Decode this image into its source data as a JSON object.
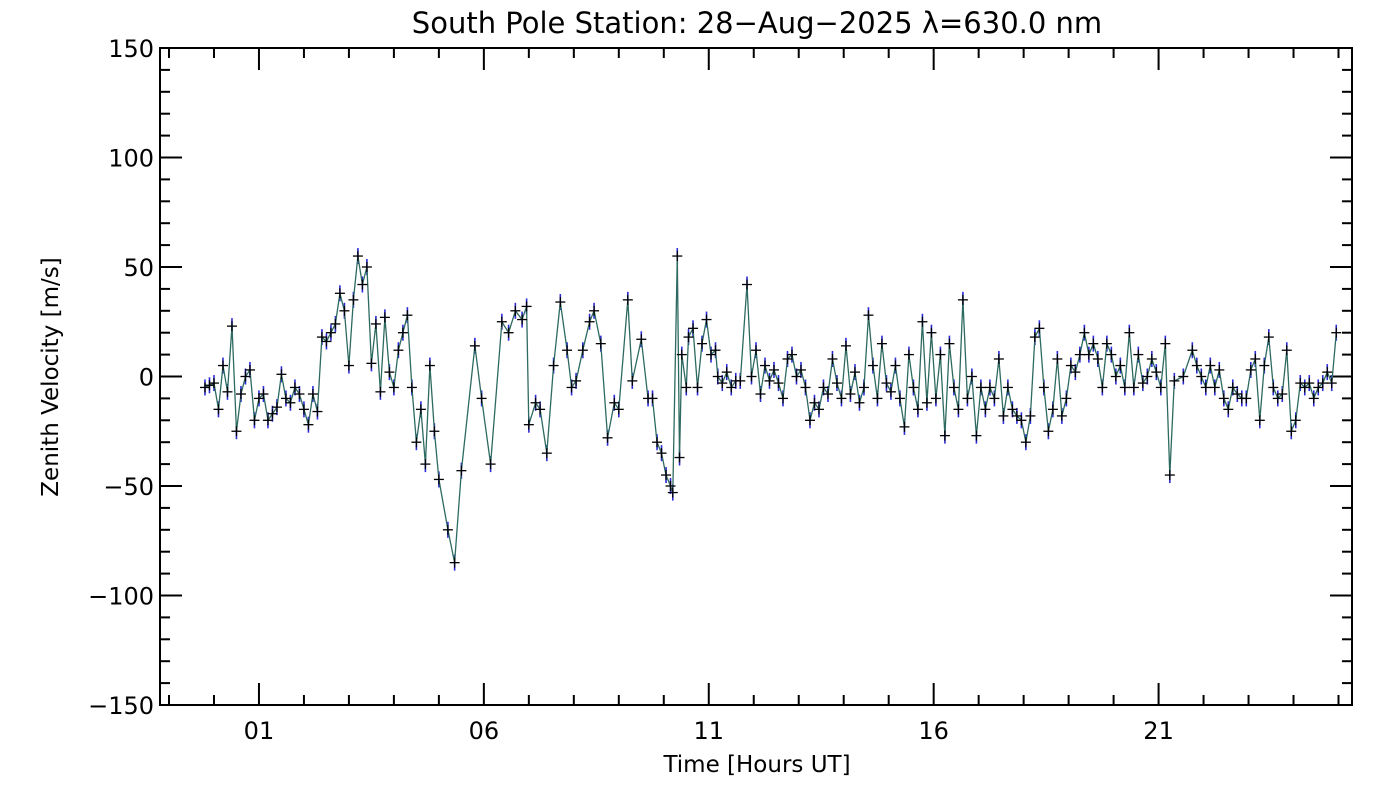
{
  "chart_data": {
    "type": "line",
    "title": "South Pole Station: 28−Aug−2025 λ=630.0 nm",
    "xlabel": "Time [Hours UT]",
    "ylabel": "Zenith Velocity [m/s]",
    "xlim": [
      -1.2,
      25.3
    ],
    "ylim": [
      -150,
      150
    ],
    "x_ticks": [
      {
        "value": 1,
        "label": "01"
      },
      {
        "value": 6,
        "label": "06"
      },
      {
        "value": 11,
        "label": "11"
      },
      {
        "value": 16,
        "label": "16"
      },
      {
        "value": 21,
        "label": "21"
      }
    ],
    "y_ticks": [
      {
        "value": 150,
        "label": "150"
      },
      {
        "value": 100,
        "label": "100"
      },
      {
        "value": 50,
        "label": "50"
      },
      {
        "value": 0,
        "label": "0"
      },
      {
        "value": -50,
        "label": "−50"
      },
      {
        "value": -100,
        "label": "−100"
      },
      {
        "value": -150,
        "label": "−150"
      }
    ],
    "colors": {
      "line": "#2d6a5f",
      "error_bars": "#2a2ad8",
      "markers": "#000000",
      "axes": "#000000"
    },
    "grid": false,
    "series": [
      {
        "marker": "plus",
        "points": [
          [
            -0.2,
            -5
          ],
          [
            -0.1,
            -4
          ],
          [
            0.0,
            -3
          ],
          [
            0.1,
            -15
          ],
          [
            0.2,
            5
          ],
          [
            0.3,
            -7
          ],
          [
            0.4,
            23
          ],
          [
            0.5,
            -25
          ],
          [
            0.6,
            -8
          ],
          [
            0.7,
            0
          ],
          [
            0.8,
            3
          ],
          [
            0.9,
            -20
          ],
          [
            1.0,
            -10
          ],
          [
            1.1,
            -8
          ],
          [
            1.2,
            -20
          ],
          [
            1.3,
            -17
          ],
          [
            1.4,
            -14
          ],
          [
            1.5,
            1
          ],
          [
            1.6,
            -10
          ],
          [
            1.7,
            -12
          ],
          [
            1.8,
            -5
          ],
          [
            1.9,
            -8
          ],
          [
            2.0,
            -15
          ],
          [
            2.1,
            -22
          ],
          [
            2.2,
            -8
          ],
          [
            2.3,
            -16
          ],
          [
            2.4,
            18
          ],
          [
            2.5,
            16
          ],
          [
            2.6,
            20
          ],
          [
            2.7,
            24
          ],
          [
            2.8,
            38
          ],
          [
            2.9,
            30
          ],
          [
            3.0,
            5
          ],
          [
            3.1,
            35
          ],
          [
            3.2,
            55
          ],
          [
            3.3,
            42
          ],
          [
            3.4,
            50
          ],
          [
            3.5,
            6
          ],
          [
            3.6,
            24
          ],
          [
            3.7,
            -7
          ],
          [
            3.8,
            27
          ],
          [
            3.9,
            2
          ],
          [
            4.0,
            -5
          ],
          [
            4.1,
            12
          ],
          [
            4.2,
            20
          ],
          [
            4.3,
            28
          ],
          [
            4.4,
            -5
          ],
          [
            4.5,
            -30
          ],
          [
            4.6,
            -15
          ],
          [
            4.7,
            -40
          ],
          [
            4.8,
            5
          ],
          [
            4.9,
            -25
          ],
          [
            5.0,
            -47
          ],
          [
            5.2,
            -70
          ],
          [
            5.35,
            -85
          ],
          [
            5.5,
            -43
          ],
          [
            5.8,
            14
          ],
          [
            5.95,
            -10
          ],
          [
            6.15,
            -40
          ],
          [
            6.4,
            25
          ],
          [
            6.55,
            20
          ],
          [
            6.7,
            30
          ],
          [
            6.85,
            26
          ],
          [
            6.95,
            32
          ],
          [
            7.0,
            -22
          ],
          [
            7.15,
            -12
          ],
          [
            7.25,
            -15
          ],
          [
            7.4,
            -35
          ],
          [
            7.55,
            5
          ],
          [
            7.7,
            34
          ],
          [
            7.85,
            12
          ],
          [
            7.95,
            -5
          ],
          [
            8.05,
            -2
          ],
          [
            8.2,
            12
          ],
          [
            8.35,
            25
          ],
          [
            8.45,
            30
          ],
          [
            8.6,
            15
          ],
          [
            8.75,
            -28
          ],
          [
            8.9,
            -12
          ],
          [
            9.0,
            -15
          ],
          [
            9.2,
            35
          ],
          [
            9.3,
            -2
          ],
          [
            9.5,
            17
          ],
          [
            9.65,
            -10
          ],
          [
            9.75,
            -10
          ],
          [
            9.85,
            -30
          ],
          [
            9.95,
            -35
          ],
          [
            10.05,
            -45
          ],
          [
            10.15,
            -50
          ],
          [
            10.2,
            -53
          ],
          [
            10.3,
            55
          ],
          [
            10.35,
            -37
          ],
          [
            10.4,
            10
          ],
          [
            10.5,
            -5
          ],
          [
            10.55,
            18
          ],
          [
            10.65,
            22
          ],
          [
            10.75,
            -5
          ],
          [
            10.85,
            15
          ],
          [
            10.95,
            26
          ],
          [
            11.05,
            10
          ],
          [
            11.15,
            12
          ],
          [
            11.2,
            0
          ],
          [
            11.3,
            -3
          ],
          [
            11.4,
            2
          ],
          [
            11.5,
            -5
          ],
          [
            11.6,
            -2
          ],
          [
            11.7,
            -2
          ],
          [
            11.85,
            42
          ],
          [
            11.95,
            0
          ],
          [
            12.05,
            12
          ],
          [
            12.15,
            -8
          ],
          [
            12.25,
            5
          ],
          [
            12.35,
            -2
          ],
          [
            12.45,
            3
          ],
          [
            12.55,
            -3
          ],
          [
            12.65,
            -10
          ],
          [
            12.75,
            8
          ],
          [
            12.85,
            10
          ],
          [
            12.95,
            0
          ],
          [
            13.05,
            3
          ],
          [
            13.15,
            -5
          ],
          [
            13.25,
            -20
          ],
          [
            13.35,
            -12
          ],
          [
            13.45,
            -15
          ],
          [
            13.55,
            -5
          ],
          [
            13.65,
            -8
          ],
          [
            13.75,
            8
          ],
          [
            13.85,
            -3
          ],
          [
            13.95,
            -10
          ],
          [
            14.05,
            14
          ],
          [
            14.15,
            -8
          ],
          [
            14.25,
            2
          ],
          [
            14.35,
            -12
          ],
          [
            14.45,
            -5
          ],
          [
            14.55,
            28
          ],
          [
            14.65,
            5
          ],
          [
            14.75,
            -10
          ],
          [
            14.85,
            15
          ],
          [
            14.95,
            -3
          ],
          [
            15.05,
            -7
          ],
          [
            15.15,
            5
          ],
          [
            15.25,
            -10
          ],
          [
            15.35,
            -23
          ],
          [
            15.45,
            10
          ],
          [
            15.55,
            -5
          ],
          [
            15.65,
            -15
          ],
          [
            15.75,
            25
          ],
          [
            15.85,
            -12
          ],
          [
            15.95,
            20
          ],
          [
            16.05,
            -10
          ],
          [
            16.15,
            10
          ],
          [
            16.25,
            -27
          ],
          [
            16.35,
            15
          ],
          [
            16.45,
            -5
          ],
          [
            16.55,
            -15
          ],
          [
            16.65,
            35
          ],
          [
            16.75,
            -10
          ],
          [
            16.85,
            0
          ],
          [
            16.95,
            -27
          ],
          [
            17.05,
            -5
          ],
          [
            17.15,
            -15
          ],
          [
            17.25,
            -5
          ],
          [
            17.35,
            -10
          ],
          [
            17.45,
            8
          ],
          [
            17.55,
            -18
          ],
          [
            17.65,
            -5
          ],
          [
            17.75,
            -15
          ],
          [
            17.85,
            -18
          ],
          [
            17.95,
            -20
          ],
          [
            18.05,
            -30
          ],
          [
            18.15,
            -18
          ],
          [
            18.25,
            18
          ],
          [
            18.35,
            22
          ],
          [
            18.45,
            -5
          ],
          [
            18.55,
            -25
          ],
          [
            18.65,
            -15
          ],
          [
            18.75,
            8
          ],
          [
            18.85,
            -18
          ],
          [
            18.95,
            -10
          ],
          [
            19.05,
            5
          ],
          [
            19.15,
            2
          ],
          [
            19.25,
            10
          ],
          [
            19.35,
            20
          ],
          [
            19.45,
            10
          ],
          [
            19.55,
            15
          ],
          [
            19.65,
            8
          ],
          [
            19.75,
            -5
          ],
          [
            19.85,
            15
          ],
          [
            19.95,
            10
          ],
          [
            20.05,
            0
          ],
          [
            20.15,
            5
          ],
          [
            20.25,
            -5
          ],
          [
            20.35,
            20
          ],
          [
            20.45,
            -5
          ],
          [
            20.55,
            10
          ],
          [
            20.65,
            -3
          ],
          [
            20.75,
            0
          ],
          [
            20.85,
            8
          ],
          [
            20.95,
            2
          ],
          [
            21.05,
            -5
          ],
          [
            21.15,
            15
          ],
          [
            21.25,
            -45
          ],
          [
            21.35,
            -2
          ],
          [
            21.55,
            0
          ],
          [
            21.75,
            12
          ],
          [
            21.85,
            5
          ],
          [
            21.95,
            0
          ],
          [
            22.05,
            -5
          ],
          [
            22.15,
            5
          ],
          [
            22.25,
            -5
          ],
          [
            22.35,
            3
          ],
          [
            22.45,
            -10
          ],
          [
            22.55,
            -15
          ],
          [
            22.65,
            -5
          ],
          [
            22.75,
            -8
          ],
          [
            22.85,
            -10
          ],
          [
            22.95,
            -10
          ],
          [
            23.05,
            3
          ],
          [
            23.15,
            8
          ],
          [
            23.25,
            -20
          ],
          [
            23.35,
            5
          ],
          [
            23.45,
            18
          ],
          [
            23.55,
            -5
          ],
          [
            23.65,
            -10
          ],
          [
            23.75,
            -8
          ],
          [
            23.85,
            12
          ],
          [
            23.95,
            -25
          ],
          [
            24.05,
            -20
          ],
          [
            24.15,
            -3
          ],
          [
            24.25,
            -5
          ],
          [
            24.35,
            -3
          ],
          [
            24.45,
            -10
          ],
          [
            24.55,
            -5
          ],
          [
            24.65,
            -3
          ],
          [
            24.75,
            2
          ],
          [
            24.85,
            -3
          ],
          [
            24.95,
            20
          ]
        ]
      }
    ]
  }
}
